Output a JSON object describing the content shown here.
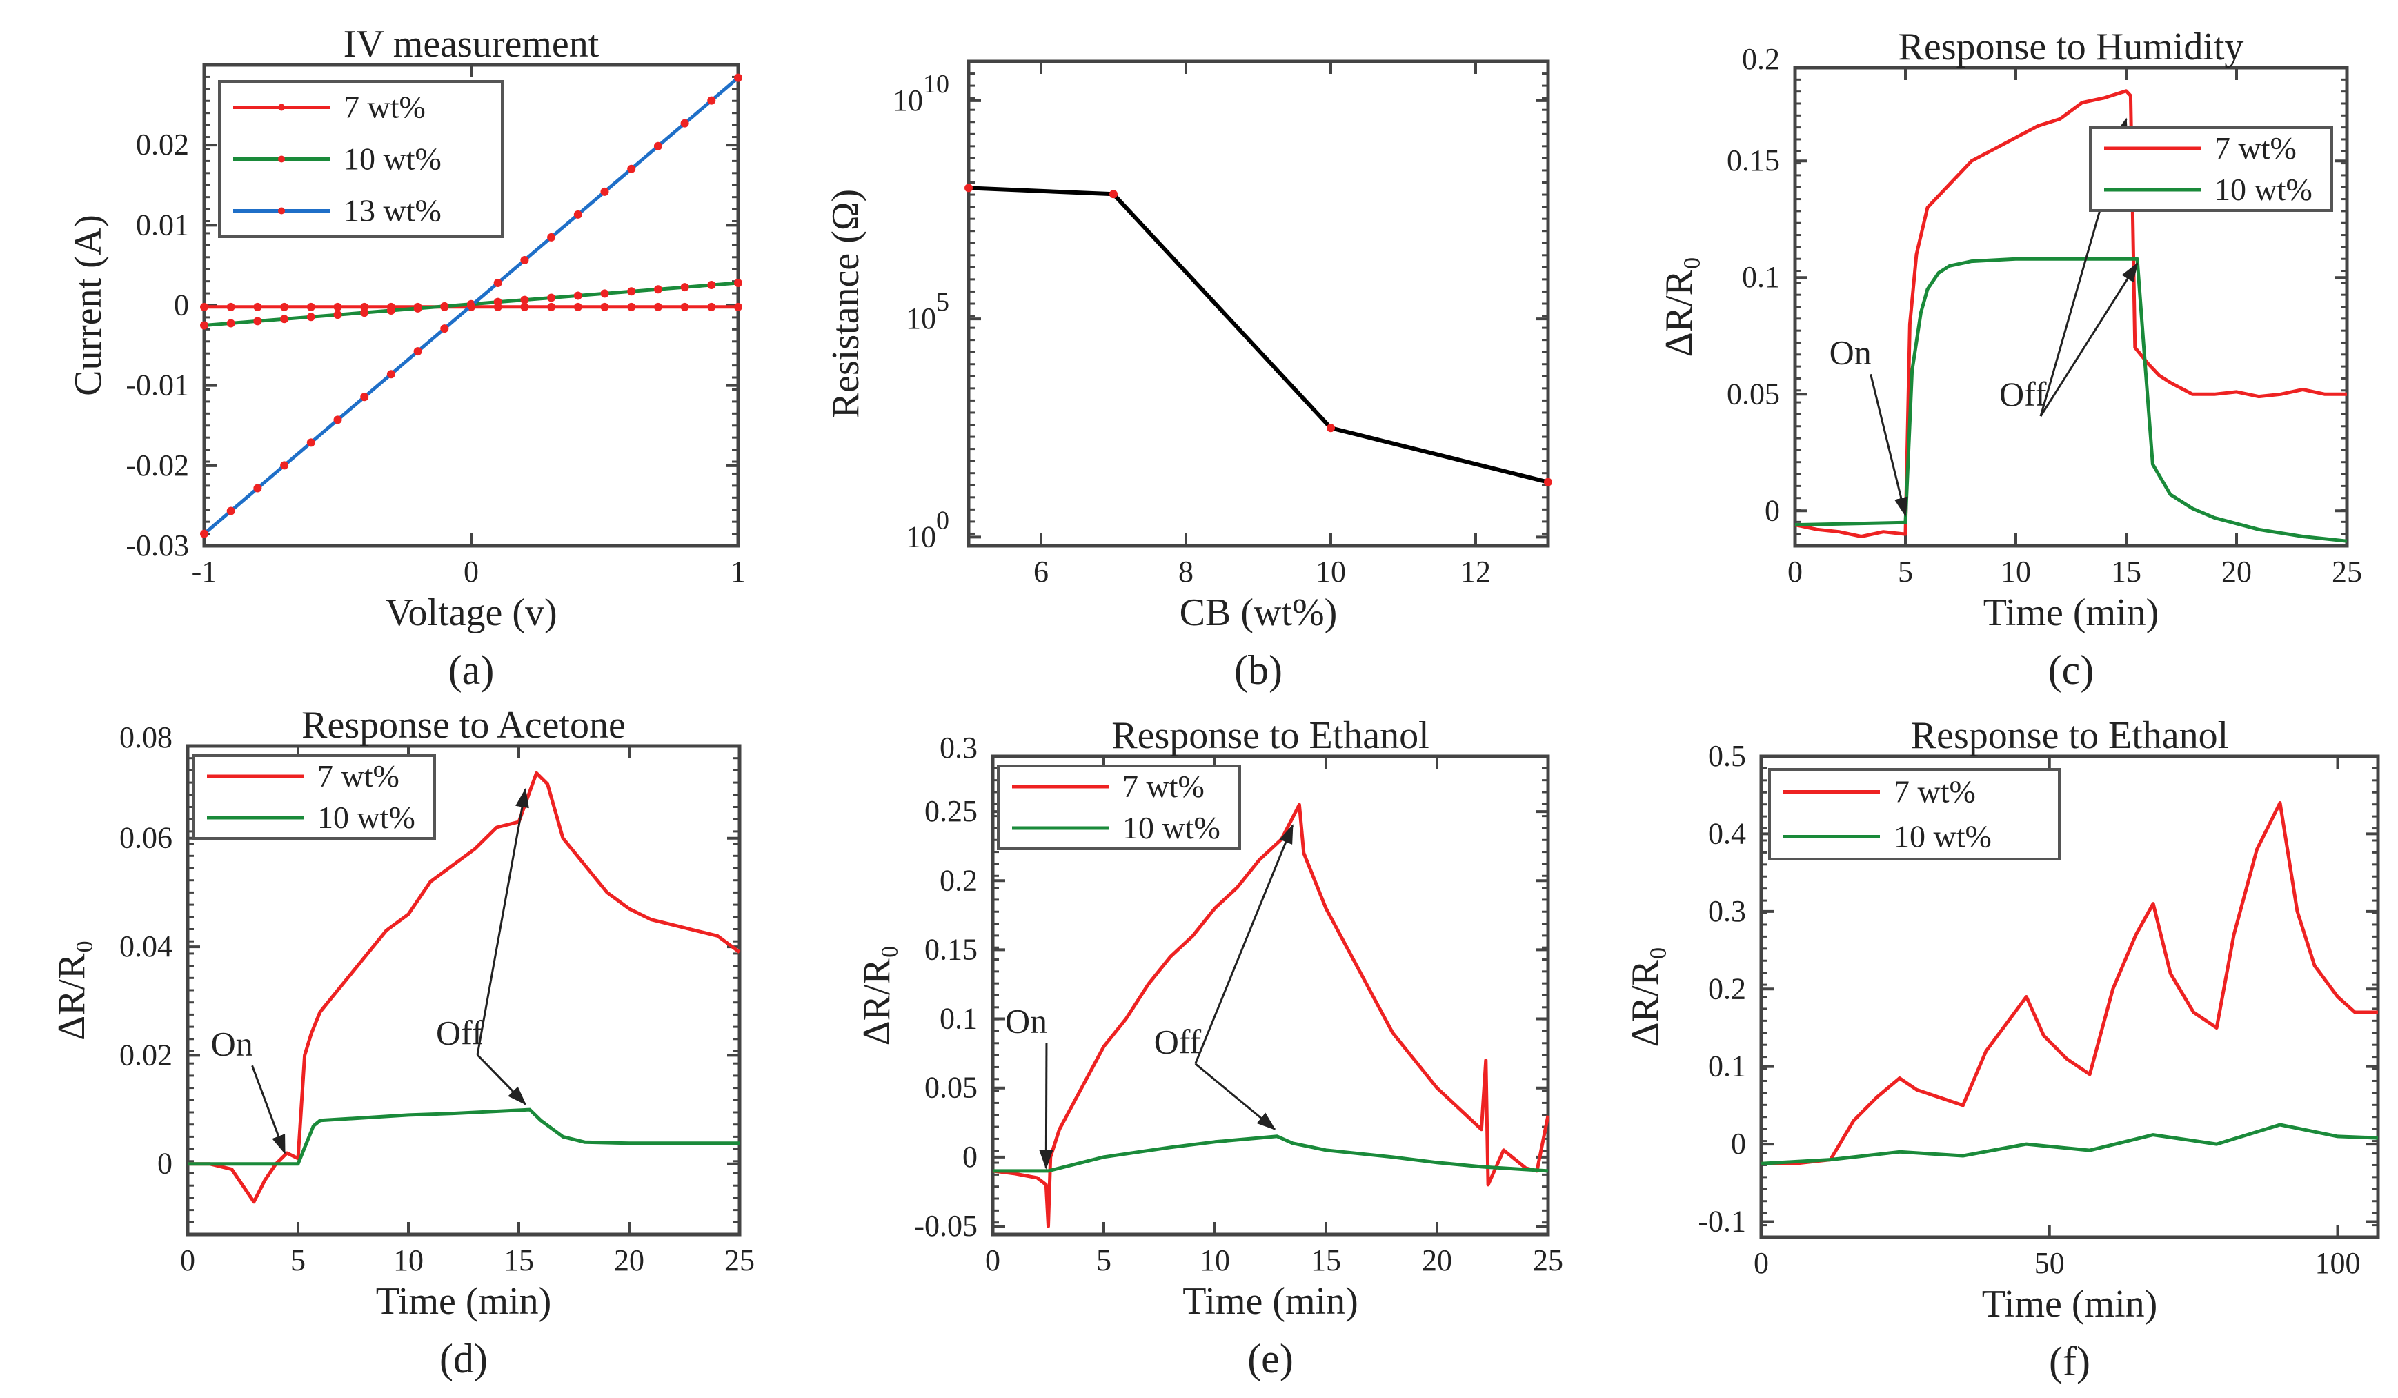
{
  "colors": {
    "red": "#ee2222",
    "green": "#1a8a3a",
    "blue": "#1f6fc8",
    "axis": "#444444",
    "marker": "#ee2222"
  },
  "chart_data": [
    {
      "id": "a",
      "panel_label": "(a)",
      "type": "line",
      "title": "IV measurement",
      "xlabel": "Voltage (v)",
      "ylabel": "Current (A)",
      "xlim": [
        -1,
        1
      ],
      "ylim": [
        -0.03,
        0.03
      ],
      "xticks": [
        -1,
        0,
        1
      ],
      "xtick_labels": [
        "-1",
        "0",
        "1"
      ],
      "yticks": [
        0.02,
        0.01,
        0,
        -0.01,
        -0.02,
        -0.03
      ],
      "ytick_labels": [
        "0.02",
        "0.01",
        "0",
        "-0.01",
        "-0.02",
        "-0.03"
      ],
      "legend": "top-left",
      "markers": true,
      "series": [
        {
          "name": "7 wt%",
          "color": "red",
          "x": [
            -1,
            1
          ],
          "y": [
            -0.0002,
            -0.0002
          ]
        },
        {
          "name": "10 wt%",
          "color": "green",
          "x": [
            -1,
            1
          ],
          "y": [
            -0.0025,
            0.0028
          ]
        },
        {
          "name": "13 wt%",
          "color": "blue",
          "x": [
            -1,
            1
          ],
          "y": [
            -0.0285,
            0.0284
          ]
        }
      ]
    },
    {
      "id": "b",
      "panel_label": "(b)",
      "type": "line",
      "title": "",
      "xlabel": "CB (wt%)",
      "ylabel": "Resistance (Ω)",
      "yscale": "log",
      "xlim": [
        5,
        13
      ],
      "ylim_log10": [
        -0.2,
        10.9
      ],
      "xticks": [
        6,
        8,
        10,
        12
      ],
      "xtick_labels": [
        "6",
        "8",
        "10",
        "12"
      ],
      "yticks_log10": [
        10,
        5,
        0
      ],
      "ytick_base": "10",
      "ytick_exponents": [
        "10",
        "5",
        "0"
      ],
      "series": [
        {
          "name": "Resistance",
          "color": "black",
          "x": [
            5,
            7,
            10,
            13
          ],
          "y_log10": [
            8.0,
            7.86,
            2.5,
            1.26
          ]
        }
      ]
    },
    {
      "id": "c",
      "panel_label": "(c)",
      "type": "line",
      "title": "Response to Humidity",
      "xlabel": "Time (min)",
      "ylabel": "ΔR/R₀",
      "xlim": [
        0,
        25
      ],
      "ylim": [
        -0.015,
        0.19
      ],
      "xticks": [
        0,
        5,
        10,
        15,
        20,
        25
      ],
      "xtick_labels": [
        "0",
        "5",
        "10",
        "15",
        "20",
        "25"
      ],
      "yticks": [
        0.2,
        0.15,
        0.1,
        0.05,
        0
      ],
      "ytick_labels": [
        "0.2",
        "0.15",
        "0.1",
        "0.05",
        "0"
      ],
      "legend": "top-right",
      "series": [
        {
          "name": "7 wt%",
          "color": "red",
          "x": [
            0,
            1,
            2,
            3,
            4,
            5,
            5.2,
            5.5,
            6,
            7,
            8,
            9,
            10,
            11,
            12,
            13,
            14,
            15,
            15.2,
            15.4,
            16,
            16.5,
            17,
            18,
            19,
            20,
            21,
            22,
            23,
            24,
            25
          ],
          "y": [
            -0.006,
            -0.008,
            -0.009,
            -0.011,
            -0.009,
            -0.01,
            0.08,
            0.11,
            0.13,
            0.14,
            0.15,
            0.155,
            0.16,
            0.165,
            0.168,
            0.175,
            0.177,
            0.18,
            0.178,
            0.07,
            0.063,
            0.058,
            0.055,
            0.05,
            0.05,
            0.051,
            0.049,
            0.05,
            0.052,
            0.05,
            0.05
          ]
        },
        {
          "name": "10 wt%",
          "color": "green",
          "x": [
            0,
            5,
            5.3,
            5.7,
            6,
            6.5,
            7,
            8,
            10,
            15.5,
            15.8,
            16.2,
            17,
            18,
            19,
            21,
            23,
            25
          ],
          "y": [
            -0.006,
            -0.005,
            0.06,
            0.085,
            0.095,
            0.102,
            0.105,
            0.107,
            0.108,
            0.108,
            0.07,
            0.02,
            0.007,
            0.001,
            -0.003,
            -0.008,
            -0.011,
            -0.013
          ]
        }
      ],
      "annotations": [
        {
          "text": "On",
          "x": 2.8,
          "y": 0.063,
          "ax": 5.0,
          "ay": -0.002
        },
        {
          "text": "Off",
          "x": 10.5,
          "y": 0.045,
          "ax": 15.0,
          "ay": 0.168
        },
        {
          "text": "Off",
          "x": 10.5,
          "y": 0.045,
          "ax": 15.5,
          "ay": 0.106
        }
      ]
    },
    {
      "id": "d",
      "panel_label": "(d)",
      "type": "line",
      "title": "Response to Acetone",
      "xlabel": "Time (min)",
      "ylabel": "ΔR/R₀",
      "xlim": [
        0,
        25
      ],
      "ylim": [
        -0.013,
        0.077
      ],
      "xticks": [
        0,
        5,
        10,
        15,
        20,
        25
      ],
      "xtick_labels": [
        "0",
        "5",
        "10",
        "15",
        "20",
        "25"
      ],
      "yticks": [
        0.08,
        0.06,
        0.04,
        0.02,
        0
      ],
      "ytick_labels": [
        "0.08",
        "0.06",
        "0.04",
        "0.02",
        "0"
      ],
      "legend": "top-left",
      "series": [
        {
          "name": "7 wt%",
          "color": "red",
          "x": [
            0,
            1,
            2,
            2.5,
            3,
            3.5,
            4,
            4.5,
            5,
            5.3,
            5.6,
            6,
            7,
            8,
            9,
            10,
            11,
            12,
            13,
            14,
            15,
            15.8,
            16.3,
            17,
            18,
            19,
            20,
            21,
            22,
            23,
            24,
            25
          ],
          "y": [
            0,
            0,
            -0.001,
            -0.004,
            -0.007,
            -0.003,
            0,
            0.002,
            0.001,
            0.02,
            0.024,
            0.028,
            0.033,
            0.038,
            0.043,
            0.046,
            0.052,
            0.055,
            0.058,
            0.062,
            0.063,
            0.072,
            0.07,
            0.06,
            0.055,
            0.05,
            0.047,
            0.045,
            0.044,
            0.043,
            0.042,
            0.039
          ]
        },
        {
          "name": "10 wt%",
          "color": "green",
          "x": [
            0,
            4,
            5,
            5.3,
            5.7,
            6,
            8,
            10,
            12,
            15.5,
            16,
            17,
            18,
            20,
            25
          ],
          "y": [
            0,
            0,
            0,
            0.003,
            0.007,
            0.008,
            0.0085,
            0.009,
            0.0093,
            0.01,
            0.008,
            0.005,
            0.004,
            0.0038,
            0.0038
          ]
        }
      ],
      "annotations": [
        {
          "text": "On",
          "x": 2.3,
          "y": 0.02,
          "ax": 4.4,
          "ay": 0.002
        },
        {
          "text": "Off",
          "x": 12.5,
          "y": 0.022,
          "ax": 15.3,
          "ay": 0.069
        },
        {
          "text": "Off",
          "x": 12.5,
          "y": 0.022,
          "ax": 15.3,
          "ay": 0.011
        }
      ]
    },
    {
      "id": "e",
      "panel_label": "(e)",
      "type": "line",
      "title": "Response to Ethanol",
      "xlabel": "Time (min)",
      "ylabel": "ΔR/R₀",
      "xlim": [
        0,
        25
      ],
      "ylim": [
        -0.056,
        0.29
      ],
      "xticks": [
        0,
        5,
        10,
        15,
        20,
        25
      ],
      "xtick_labels": [
        "0",
        "5",
        "10",
        "15",
        "20",
        "25"
      ],
      "yticks": [
        0.3,
        0.25,
        0.2,
        0.15,
        0.1,
        0.05,
        0,
        -0.05
      ],
      "ytick_labels": [
        "0.3",
        "0.25",
        "0.2",
        "0.15",
        "0.1",
        "0.05",
        "0",
        "-0.05"
      ],
      "legend": "top-left",
      "series": [
        {
          "name": "7 wt%",
          "color": "red",
          "x": [
            0,
            1,
            2,
            2.4,
            2.5,
            2.6,
            3,
            4,
            5,
            6,
            7,
            8,
            9,
            10,
            11,
            12,
            13,
            13.8,
            14,
            15,
            16,
            17,
            18,
            19,
            20,
            21,
            22,
            22.2,
            22.3,
            23,
            24,
            24.5,
            25
          ],
          "y": [
            -0.01,
            -0.012,
            -0.015,
            -0.02,
            -0.05,
            0.0,
            0.02,
            0.05,
            0.08,
            0.1,
            0.125,
            0.145,
            0.16,
            0.18,
            0.195,
            0.215,
            0.23,
            0.255,
            0.22,
            0.18,
            0.15,
            0.12,
            0.09,
            0.07,
            0.05,
            0.035,
            0.02,
            0.07,
            -0.02,
            0.005,
            -0.008,
            -0.01,
            0.03
          ]
        },
        {
          "name": "10 wt%",
          "color": "green",
          "x": [
            0,
            2.5,
            5,
            8,
            10,
            12.8,
            13.5,
            15,
            18,
            20,
            22,
            25
          ],
          "y": [
            -0.01,
            -0.01,
            0.0,
            0.007,
            0.011,
            0.015,
            0.01,
            0.005,
            0.0,
            -0.004,
            -0.007,
            -0.01
          ]
        }
      ],
      "annotations": [
        {
          "text": "On",
          "x": 1.8,
          "y": 0.09,
          "ax": 2.4,
          "ay": -0.008
        },
        {
          "text": "Off",
          "x": 8.5,
          "y": 0.075,
          "ax": 13.5,
          "ay": 0.24
        },
        {
          "text": "Off",
          "x": 8.5,
          "y": 0.075,
          "ax": 12.7,
          "ay": 0.02
        }
      ]
    },
    {
      "id": "f",
      "panel_label": "(f)",
      "type": "line",
      "title": "Response to Ethanol",
      "xlabel": "Time (min)",
      "ylabel": "ΔR/R₀",
      "xlim": [
        0,
        107
      ],
      "ylim": [
        -0.12,
        0.5
      ],
      "xticks": [
        0,
        50,
        100
      ],
      "xtick_labels": [
        "0",
        "50",
        "100"
      ],
      "yticks": [
        0.5,
        0.4,
        0.3,
        0.2,
        0.1,
        0,
        -0.1
      ],
      "ytick_labels": [
        "0.5",
        "0.4",
        "0.3",
        "0.2",
        "0.1",
        "0",
        "-0.1"
      ],
      "legend": "top-left",
      "series": [
        {
          "name": "7 wt%",
          "color": "red",
          "x": [
            0,
            6,
            12,
            16,
            20,
            24,
            27,
            31,
            35,
            39,
            43,
            46,
            49,
            53,
            57,
            61,
            65,
            68,
            71,
            75,
            79,
            82,
            86,
            90,
            93,
            96,
            100,
            103,
            107
          ],
          "y": [
            -0.025,
            -0.025,
            -0.02,
            0.03,
            0.06,
            0.085,
            0.07,
            0.06,
            0.05,
            0.12,
            0.16,
            0.19,
            0.14,
            0.11,
            0.09,
            0.2,
            0.27,
            0.31,
            0.22,
            0.17,
            0.15,
            0.27,
            0.38,
            0.44,
            0.3,
            0.23,
            0.19,
            0.17,
            0.17
          ]
        },
        {
          "name": "10 wt%",
          "color": "green",
          "x": [
            0,
            12,
            24,
            35,
            46,
            57,
            68,
            79,
            90,
            100,
            107
          ],
          "y": [
            -0.025,
            -0.02,
            -0.01,
            -0.015,
            0.0,
            -0.008,
            0.012,
            0.0,
            0.025,
            0.01,
            0.008
          ]
        }
      ]
    }
  ]
}
